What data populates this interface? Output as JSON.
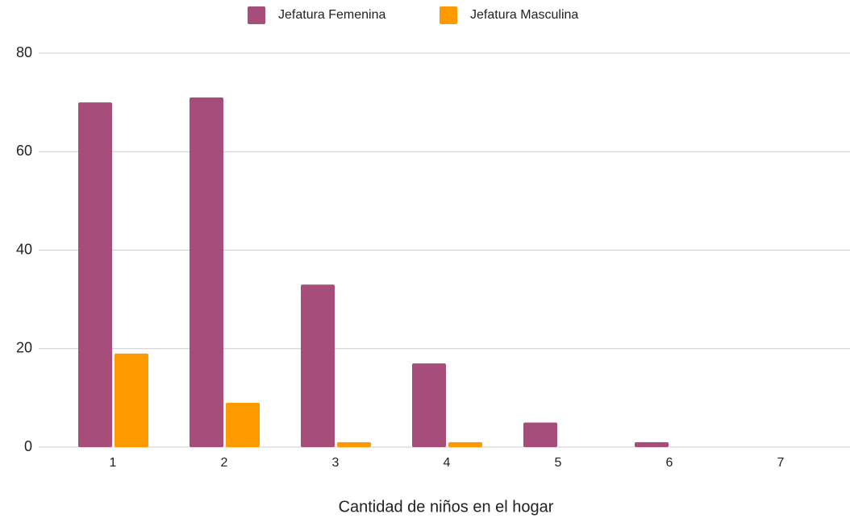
{
  "chart_data": {
    "type": "bar",
    "x_label": "Cantidad de niños en el hogar",
    "categories": [
      "1",
      "2",
      "3",
      "4",
      "5",
      "6",
      "7"
    ],
    "series": [
      {
        "name": "Jefatura Femenina",
        "color": "#a64d79",
        "values": [
          70,
          71,
          33,
          17,
          5,
          1,
          0
        ]
      },
      {
        "name": "Jefatura Masculina",
        "color": "#ff9900",
        "values": [
          19,
          9,
          1,
          1,
          0,
          0,
          0
        ]
      }
    ],
    "ylim": [
      0,
      80
    ],
    "yticks": [
      0,
      20,
      40,
      60,
      80
    ],
    "grid": true,
    "legend": "top"
  }
}
